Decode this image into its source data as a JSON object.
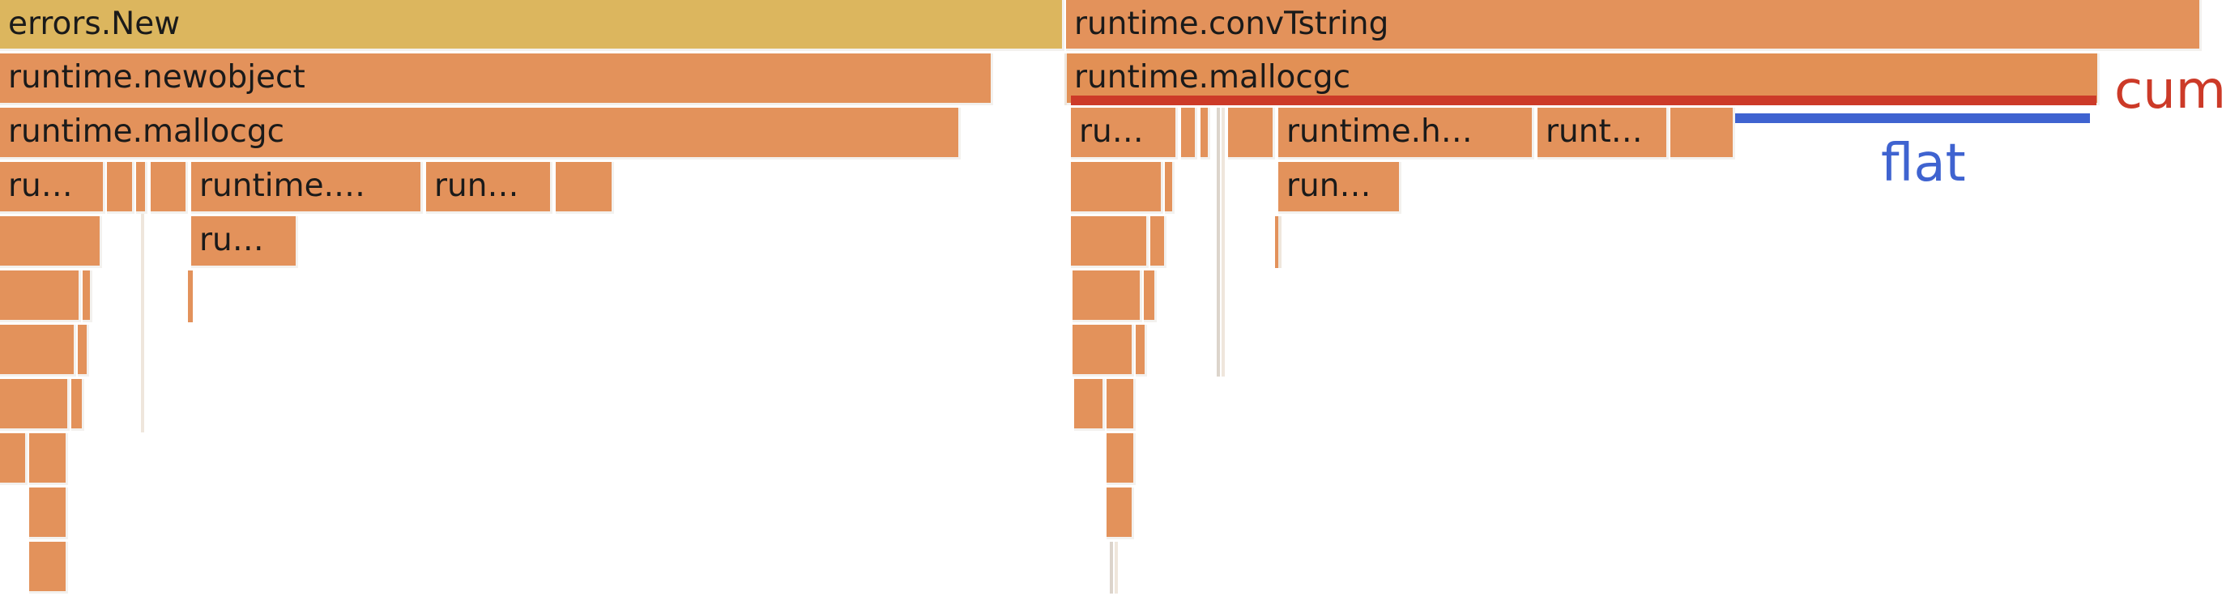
{
  "flamegraph": {
    "frames": {
      "errors_new": "errors.New",
      "runtime_newobject": "runtime.newobject",
      "runtime_mallocgc_left": "runtime.mallocgc",
      "ru_l1": "ru…",
      "runtime_dots_l": "runtime.…",
      "run_l": "run…",
      "ru_l2": "ru…",
      "runtime_convtstring": "runtime.convTstring",
      "runtime_mallocgc_right": "runtime.mallocgc",
      "ru_r1": "ru…",
      "runtime_h": "runtime.h…",
      "runt_r": "runt…",
      "run_r": "run…"
    },
    "legend": {
      "cum_label": "cum",
      "flat_label": "flat",
      "cum_color": "#cc3a28",
      "flat_color": "#3f63d0"
    },
    "colors": {
      "root_frame": "#dcb65e",
      "frame": "#e3925b"
    }
  }
}
